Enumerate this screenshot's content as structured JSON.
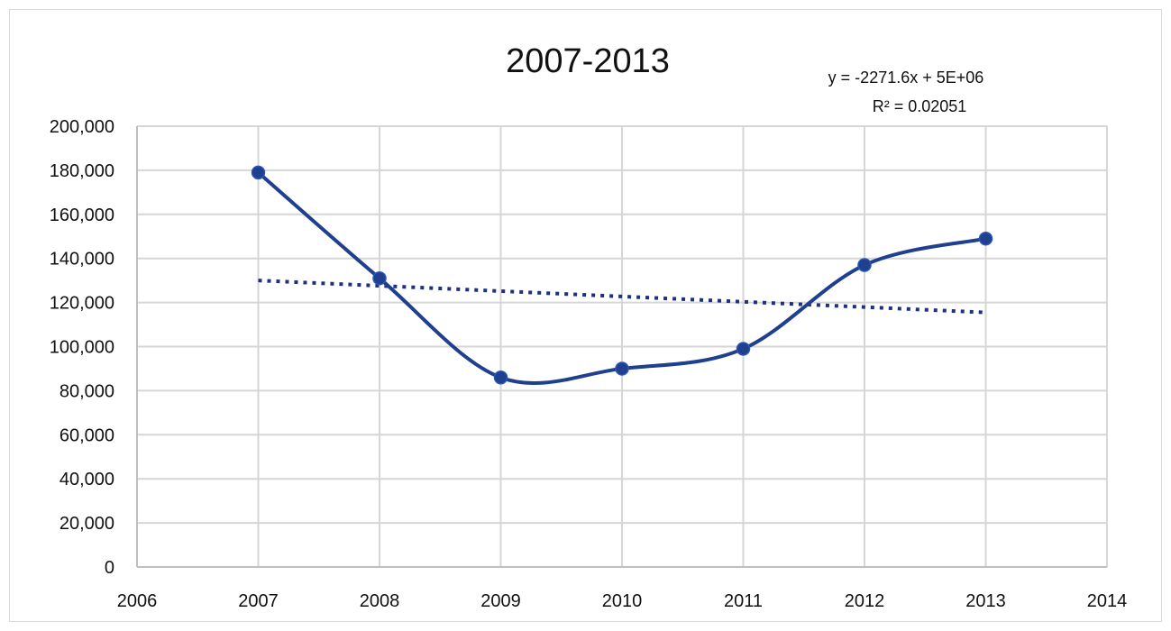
{
  "chart_data": {
    "type": "line",
    "title": "2007-2013",
    "x": [
      2007,
      2008,
      2009,
      2010,
      2011,
      2012,
      2013
    ],
    "series": [
      {
        "values": [
          179000,
          131000,
          86000,
          90000,
          99000,
          137000,
          149000
        ]
      }
    ],
    "xlim": [
      2006,
      2014
    ],
    "ylim": [
      0,
      200000
    ],
    "x_ticks": [
      "2006",
      "2007",
      "2008",
      "2009",
      "2010",
      "2011",
      "2012",
      "2013",
      "2014"
    ],
    "y_ticks": [
      "0",
      "20,000",
      "40,000",
      "60,000",
      "80,000",
      "100,000",
      "120,000",
      "140,000",
      "160,000",
      "180,000",
      "200,000"
    ],
    "grid": true,
    "trendline": {
      "type": "linear",
      "style": "dotted",
      "slope": -2271.6,
      "equation": "y = -2271.6x + 5E+06",
      "r_squared_label": "R² = 0.02051",
      "start": [
        2007,
        130000
      ],
      "end": [
        2013,
        115500
      ]
    },
    "colors": {
      "series": "#1f3f8f",
      "trend": "#1f3080",
      "grid": "#d6d6d6"
    }
  }
}
